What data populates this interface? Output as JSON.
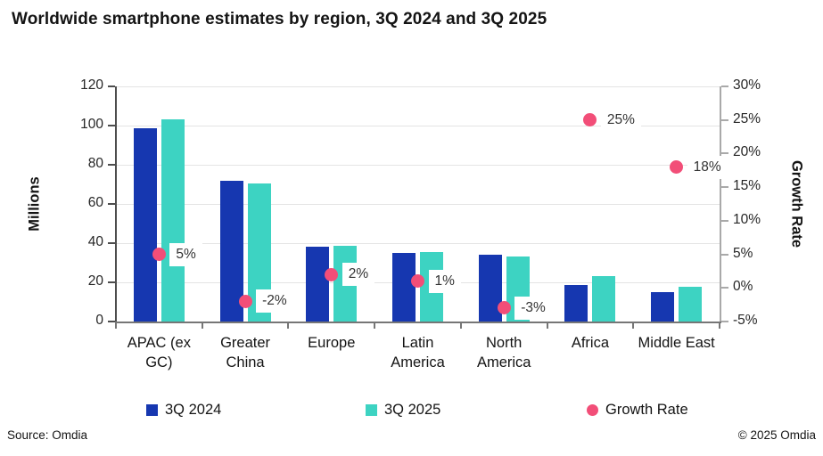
{
  "title": "Worldwide smartphone estimates by region, 3Q 2024 and 3Q 2025",
  "footer": {
    "source": "Source: Omdia",
    "copyright": "© 2025 Omdia"
  },
  "chart_data": {
    "type": "bar",
    "title": "Worldwide smartphone estimates by region, 3Q 2024 and 3Q 2025",
    "categories": [
      "APAC (ex GC)",
      "Greater China",
      "Europe",
      "Latin America",
      "North America",
      "Africa",
      "Middle East"
    ],
    "series": [
      {
        "name": "3Q 2024",
        "type": "bar",
        "axis": "left",
        "color": "#1637b0",
        "values": [
          98.5,
          72,
          38,
          35,
          34,
          18.7,
          15
        ]
      },
      {
        "name": "3Q 2025",
        "type": "bar",
        "axis": "left",
        "color": "#3dd3c2",
        "values": [
          103.4,
          70.5,
          38.8,
          35.4,
          33,
          23.4,
          17.7
        ]
      },
      {
        "name": "Growth Rate",
        "type": "scatter",
        "axis": "right",
        "color": "#f24e78",
        "values": [
          5,
          -2,
          2,
          1,
          -3,
          25,
          18
        ],
        "labels": [
          "5%",
          "-2%",
          "2%",
          "1%",
          "-3%",
          "25%",
          "18%"
        ]
      }
    ],
    "left_axis": {
      "label": "Millions",
      "min": 0,
      "max": 120,
      "step": 20,
      "ticks": [
        "0",
        "20",
        "40",
        "60",
        "80",
        "100",
        "120"
      ]
    },
    "right_axis": {
      "label": "Growth Rate",
      "min": -5,
      "max": 30,
      "step": 5,
      "ticks": [
        "-5%",
        "0%",
        "5%",
        "10%",
        "15%",
        "20%",
        "25%",
        "30%"
      ]
    },
    "grid": true,
    "legend_position": "bottom"
  }
}
